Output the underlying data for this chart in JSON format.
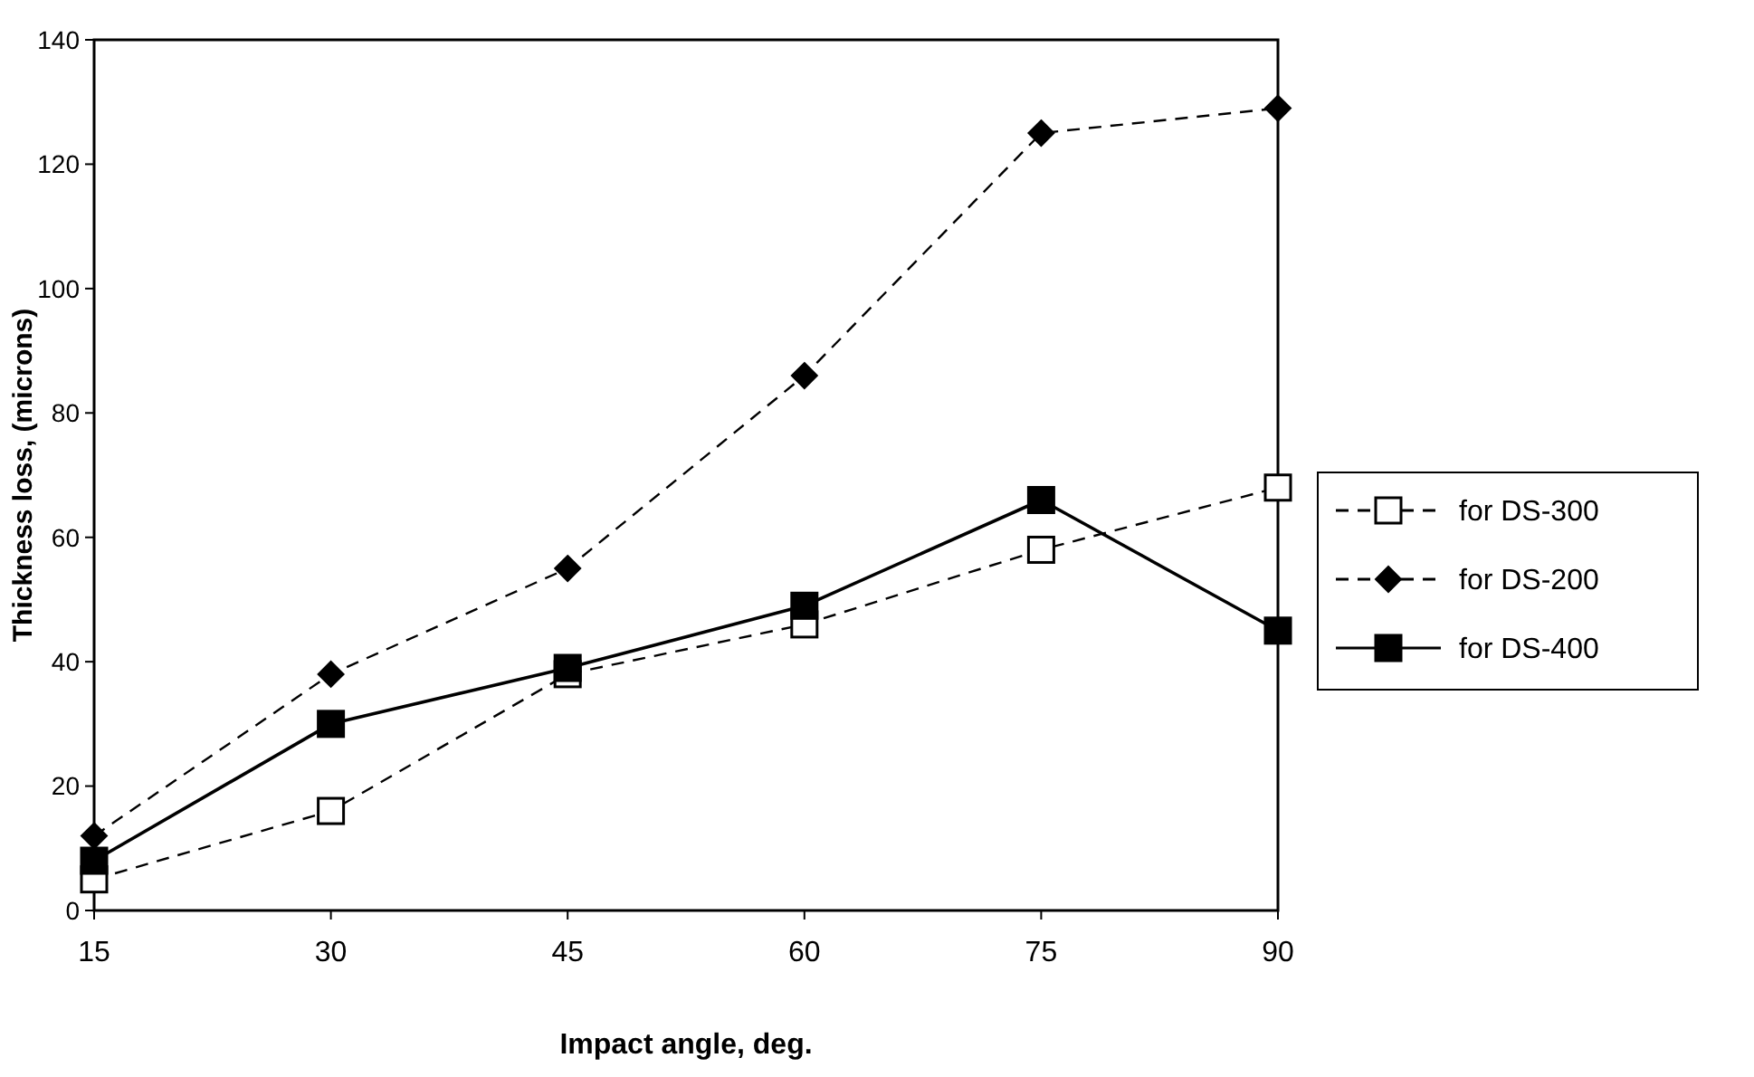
{
  "chart_data": {
    "type": "line",
    "xlabel": "Impact angle, deg.",
    "ylabel": "Thickness loss, (microns)",
    "x": [
      15,
      30,
      45,
      60,
      75,
      90
    ],
    "series": [
      {
        "name": "for DS-300",
        "color": "#000000",
        "values": [
          5,
          16,
          38,
          46,
          58,
          68
        ],
        "marker": "square",
        "line_style": "dashed"
      },
      {
        "name": "for DS-200",
        "color": "#000000",
        "values": [
          12,
          38,
          55,
          86,
          125,
          129
        ],
        "marker": "diamond",
        "line_style": "dashed"
      },
      {
        "name": "for DS-400",
        "color": "#000000",
        "values": [
          8,
          30,
          39,
          49,
          66,
          45
        ],
        "marker": "square",
        "line_style": "solid"
      }
    ],
    "xlim": [
      15,
      90
    ],
    "xticks": [
      15,
      30,
      45,
      60,
      75,
      90
    ],
    "ylim": [
      0,
      140
    ],
    "yticks": [
      0,
      20,
      40,
      60,
      80,
      100,
      120,
      140
    ],
    "grid": false,
    "legend": "right"
  }
}
